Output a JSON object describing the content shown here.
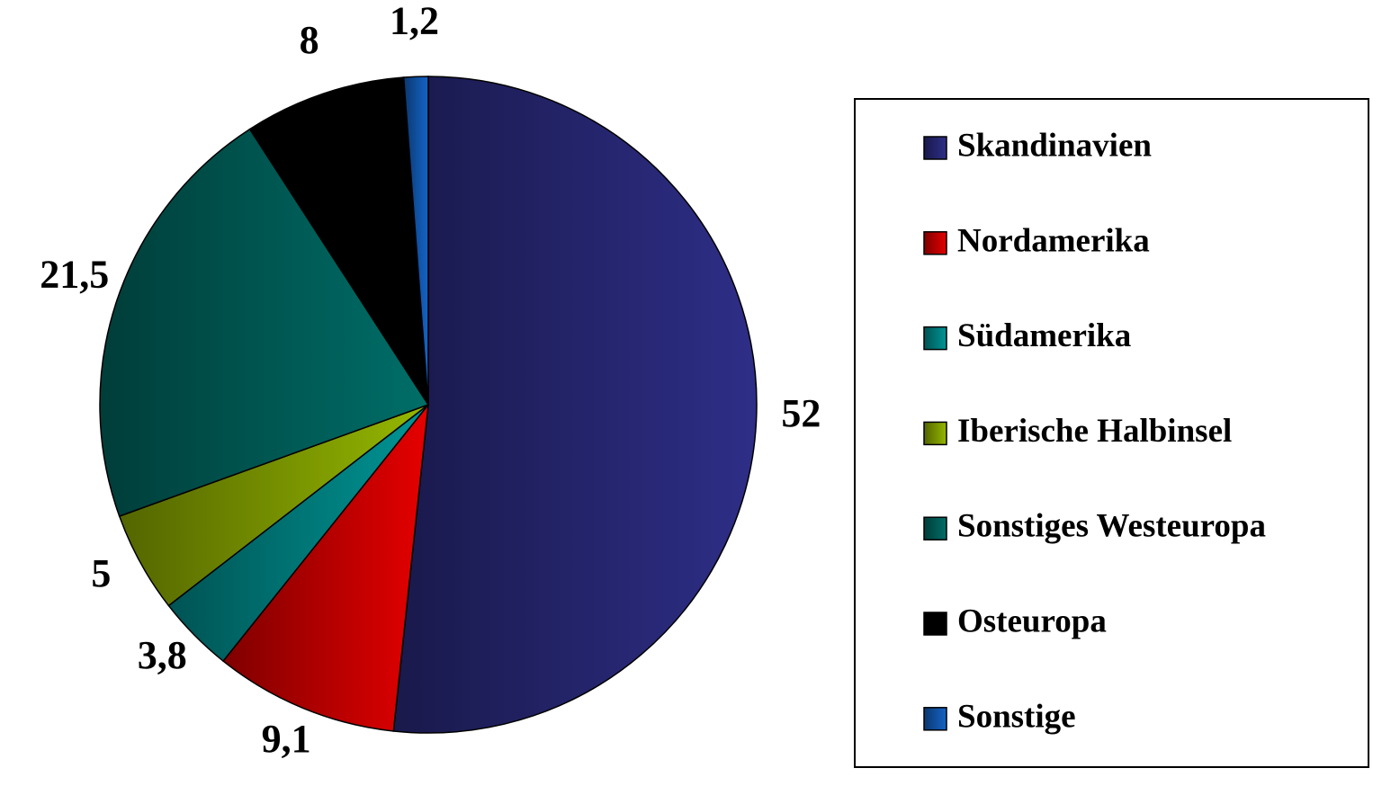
{
  "chart_data": {
    "type": "pie",
    "categories": [
      "Skandinavien",
      "Nordamerika",
      "Südamerika",
      "Iberische Halbinsel",
      "Sonstiges Westeuropa",
      "Osteuropa",
      "Sonstige"
    ],
    "values": [
      52,
      9.1,
      3.8,
      5,
      21.5,
      8,
      1.2
    ],
    "value_labels": [
      "52",
      "9,1",
      "3,8",
      "5",
      "21,5",
      "8",
      "1,2"
    ],
    "colors": [
      "#2e2e88",
      "#e60000",
      "#009696",
      "#96b800",
      "#006e68",
      "#000000",
      "#1464c8"
    ],
    "legend": "right"
  }
}
